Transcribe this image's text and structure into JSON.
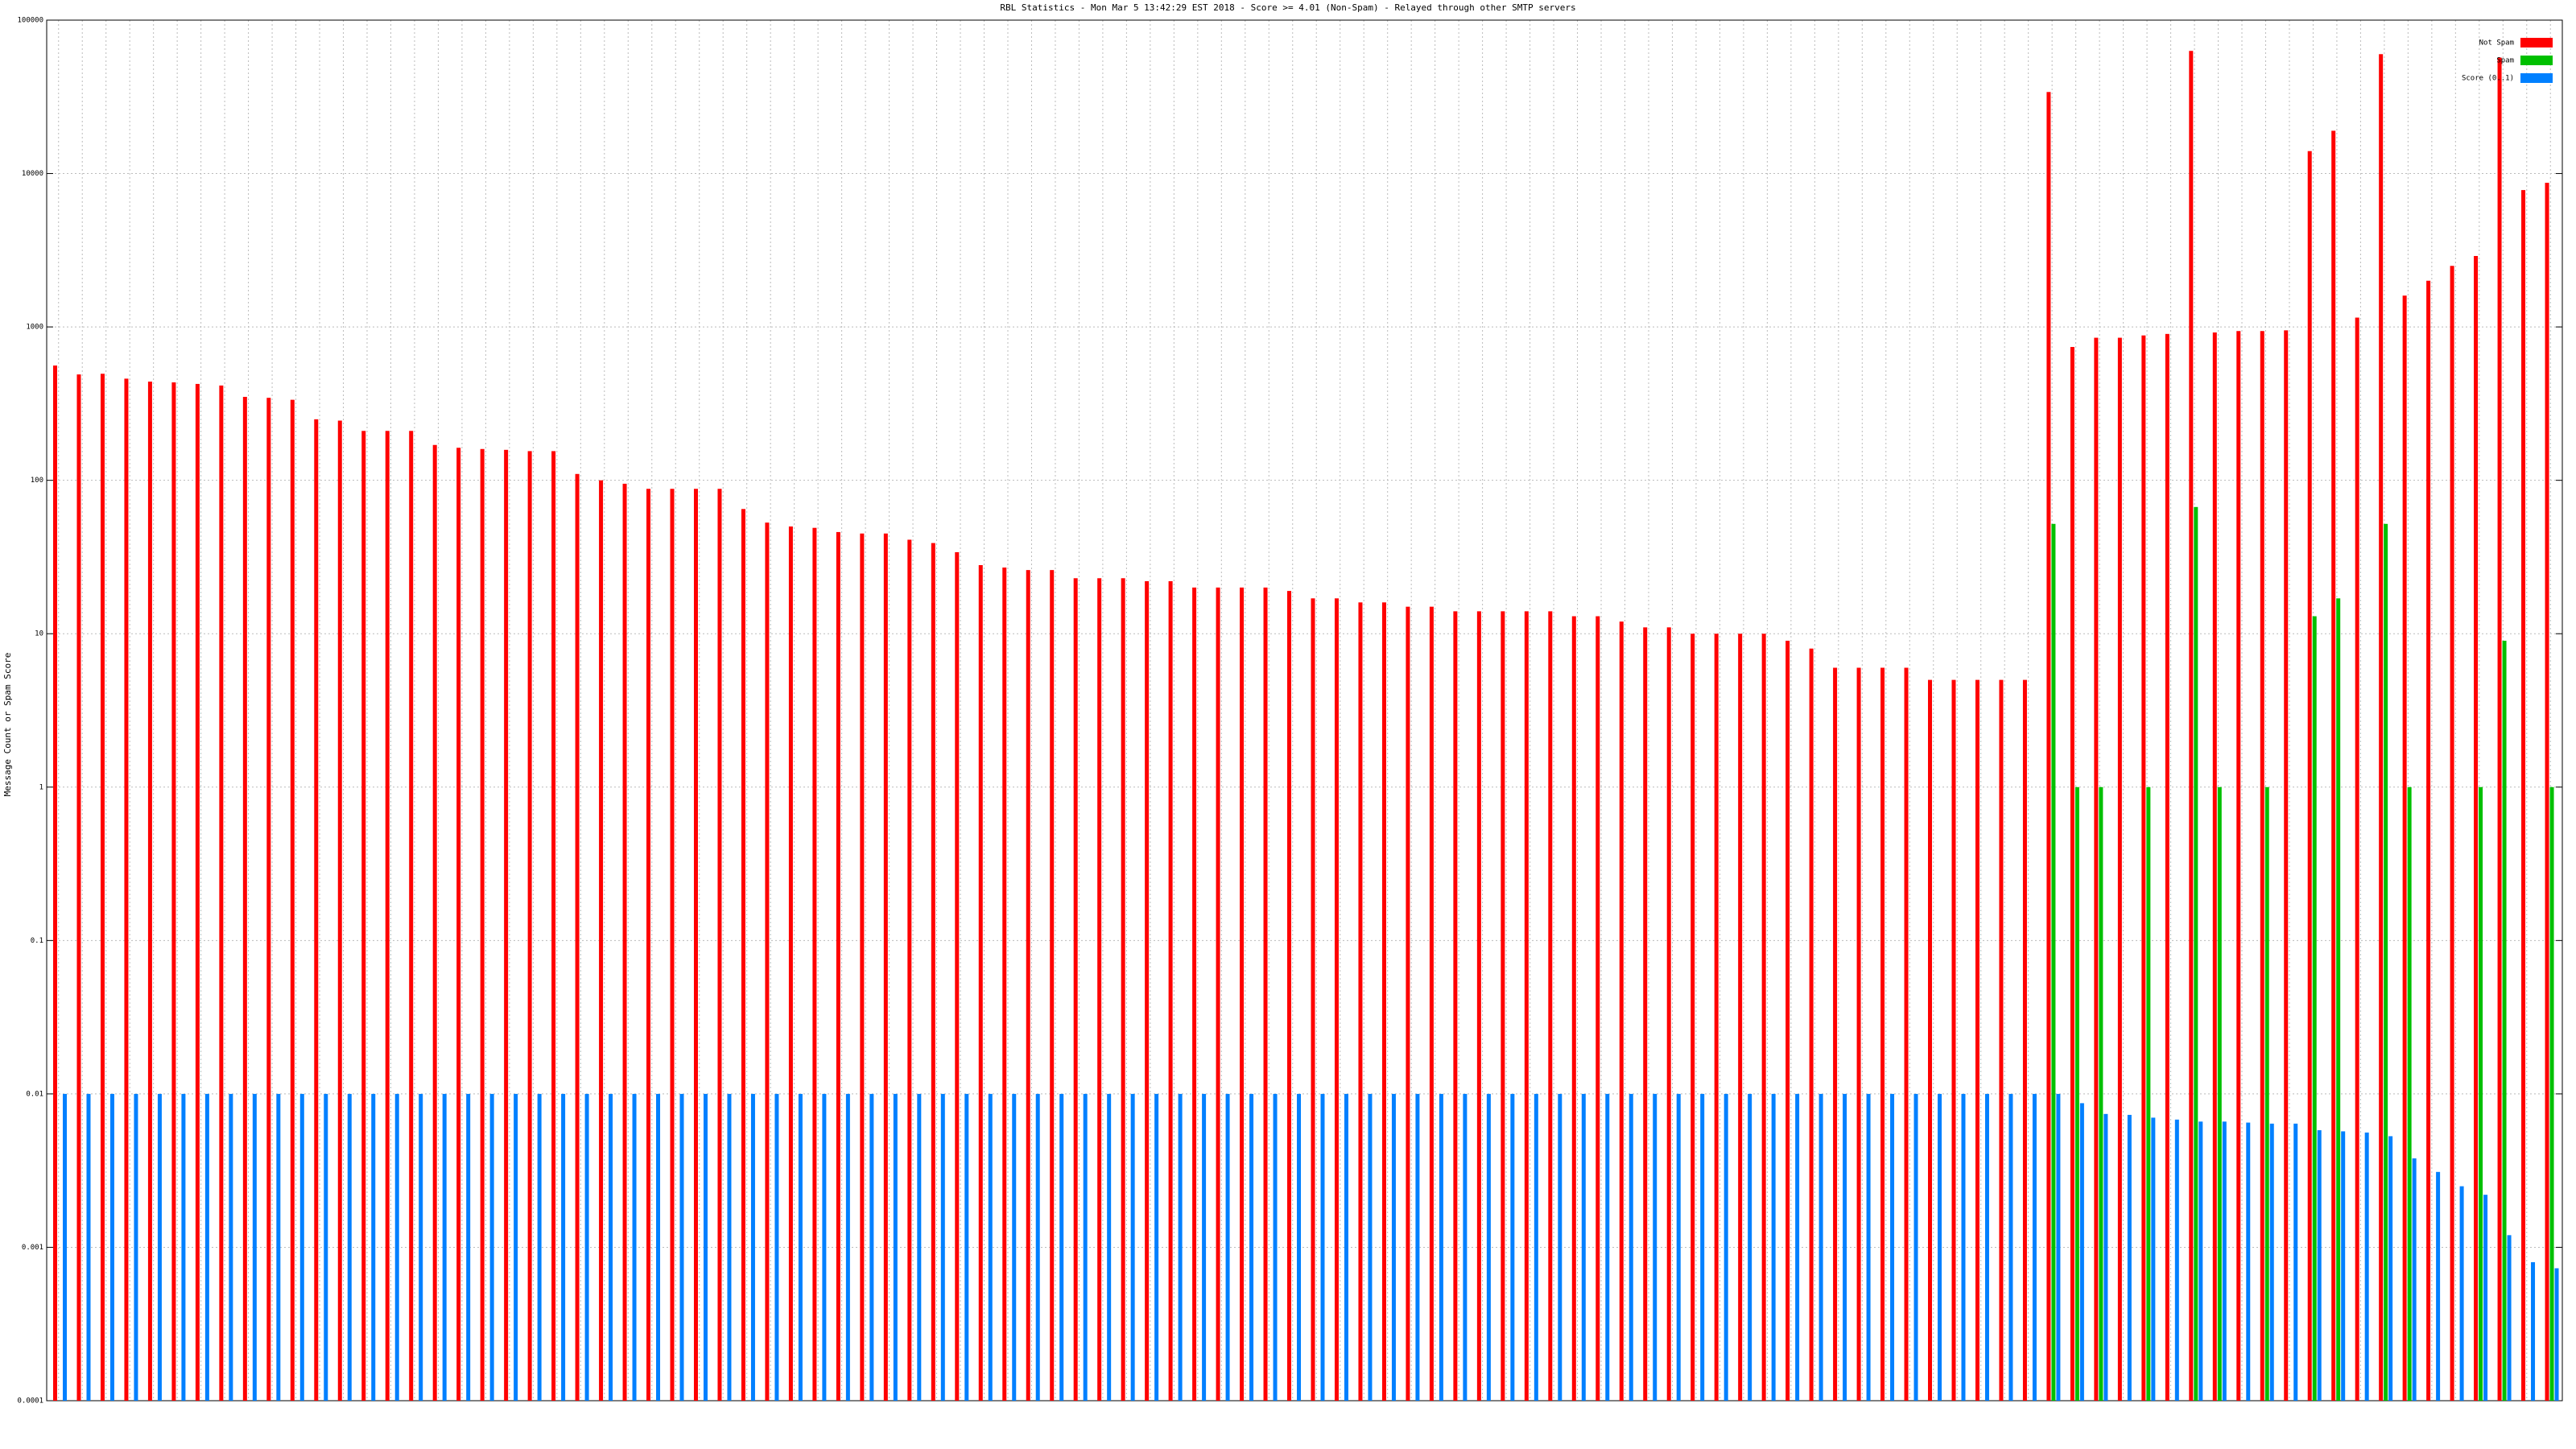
{
  "chart_data": {
    "type": "bar",
    "log_scale": true,
    "grid": true,
    "legend_position": "top-right",
    "title": "RBL Statistics - Mon Mar  5 13:42:29 EST 2018 - Score >= 4.01 (Non-Spam) - Relayed through other SMTP servers",
    "y_label": "Message Count or Spam Score",
    "categories": [
      null,
      null,
      null,
      null,
      null,
      null,
      null,
      null,
      null,
      null,
      null,
      null,
      null,
      null,
      null,
      null,
      null,
      null,
      null,
      null,
      null,
      null,
      null,
      null,
      null,
      null,
      null,
      null,
      null,
      null,
      null,
      null,
      null,
      null,
      null,
      null,
      null,
      null,
      null,
      null,
      null,
      null,
      null,
      null,
      null,
      null,
      null,
      null,
      null,
      null,
      null,
      null,
      null,
      null,
      null,
      null,
      null,
      null,
      null,
      null,
      null,
      null,
      null,
      null,
      null,
      null,
      null,
      null,
      null,
      null,
      null,
      null,
      null,
      null,
      null,
      null,
      null,
      null,
      null,
      null,
      null,
      null,
      null,
      null,
      null,
      null,
      null,
      null,
      null,
      null,
      null,
      null,
      null,
      null,
      null,
      null,
      null,
      null,
      null,
      null,
      null,
      null,
      null,
      null,
      null,
      null
    ],
    "series": [
      {
        "name": "Not Spam",
        "color": "#ff0000",
        "values": [
          560,
          490,
          495,
          460,
          440,
          435,
          425,
          415,
          350,
          345,
          335,
          250,
          245,
          210,
          210,
          210,
          170,
          163,
          160,
          158,
          155,
          155,
          110,
          100,
          95,
          88,
          88,
          88,
          88,
          65,
          53,
          50,
          49,
          46,
          45,
          45,
          41,
          39,
          34,
          28,
          27,
          26,
          26,
          23,
          23,
          23,
          22,
          22,
          20,
          20,
          20,
          20,
          19,
          17,
          17,
          16,
          16,
          15,
          15,
          14,
          14,
          14,
          14,
          14,
          13,
          13,
          12,
          11,
          11,
          10,
          10,
          10,
          10,
          9,
          8,
          6,
          6,
          6,
          6,
          5,
          5,
          5,
          5,
          5,
          34000,
          740,
          850,
          850,
          880,
          900,
          63000,
          920,
          940,
          940,
          950,
          14000,
          19000,
          1150,
          60000,
          1600,
          2000,
          2500,
          2900,
          57000,
          7800,
          8700
        ]
      },
      {
        "name": "Spam",
        "color": "#00c000",
        "values": [
          null,
          null,
          null,
          null,
          null,
          null,
          null,
          null,
          null,
          null,
          null,
          null,
          null,
          null,
          null,
          null,
          null,
          null,
          null,
          null,
          null,
          null,
          null,
          null,
          null,
          null,
          null,
          null,
          null,
          null,
          null,
          null,
          null,
          null,
          null,
          null,
          null,
          null,
          null,
          null,
          null,
          null,
          null,
          null,
          null,
          null,
          null,
          null,
          null,
          null,
          null,
          null,
          null,
          null,
          null,
          null,
          null,
          null,
          null,
          null,
          null,
          null,
          null,
          null,
          null,
          null,
          null,
          null,
          null,
          null,
          null,
          null,
          null,
          null,
          null,
          null,
          null,
          null,
          null,
          null,
          null,
          null,
          null,
          null,
          52,
          1,
          1,
          null,
          1,
          null,
          67,
          1,
          null,
          1,
          null,
          13,
          17,
          null,
          52,
          1,
          null,
          null,
          1,
          9,
          null,
          1
        ]
      },
      {
        "name": "Score (0..1)",
        "color": "#0080ff",
        "values": [
          0.01,
          0.01,
          0.01,
          0.01,
          0.01,
          0.01,
          0.01,
          0.01,
          0.01,
          0.01,
          0.01,
          0.01,
          0.01,
          0.01,
          0.01,
          0.01,
          0.01,
          0.01,
          0.01,
          0.01,
          0.01,
          0.01,
          0.01,
          0.01,
          0.01,
          0.01,
          0.01,
          0.01,
          0.01,
          0.01,
          0.01,
          0.01,
          0.01,
          0.01,
          0.01,
          0.01,
          0.01,
          0.01,
          0.01,
          0.01,
          0.01,
          0.01,
          0.01,
          0.01,
          0.01,
          0.01,
          0.01,
          0.01,
          0.01,
          0.01,
          0.01,
          0.01,
          0.01,
          0.01,
          0.01,
          0.01,
          0.01,
          0.01,
          0.01,
          0.01,
          0.01,
          0.01,
          0.01,
          0.01,
          0.01,
          0.01,
          0.01,
          0.01,
          0.01,
          0.01,
          0.01,
          0.01,
          0.01,
          0.01,
          0.01,
          0.01,
          0.01,
          0.01,
          0.01,
          0.01,
          0.01,
          0.01,
          0.01,
          0.01,
          0.01,
          0.0087,
          0.0074,
          0.0073,
          0.007,
          0.0068,
          0.0066,
          0.0066,
          0.0065,
          0.0064,
          0.0064,
          0.0058,
          0.0057,
          0.0056,
          0.0053,
          0.0038,
          0.0031,
          0.0025,
          0.0022,
          0.0012,
          0.0008,
          0.00073
        ]
      }
    ],
    "ylim": [
      0.0001,
      100000
    ],
    "yticks": [
      0.0001,
      0.001,
      0.01,
      0.1,
      1,
      10,
      100,
      1000,
      10000,
      100000
    ]
  }
}
